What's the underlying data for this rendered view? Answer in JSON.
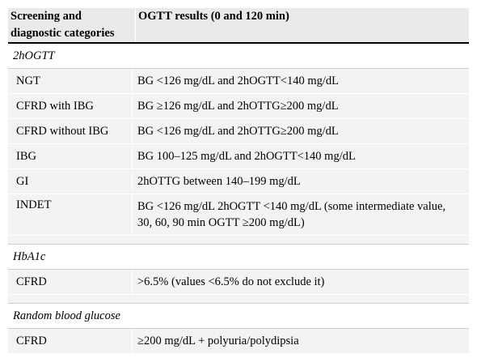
{
  "table": {
    "headers": [
      "Screening and diagnostic categories",
      "OGTT results (0 and 120 min)"
    ],
    "sections": [
      {
        "title": "2hOGTT",
        "rows": [
          {
            "category": "NGT",
            "result": "BG <126 mg/dL and 2hOGTT<140 mg/dL"
          },
          {
            "category": "CFRD with IBG",
            "result": "BG ≥126 mg/dL and 2hOTTG≥200 mg/dL"
          },
          {
            "category": "CFRD without IBG",
            "result": "BG <126 mg/dL and 2hOTTG≥200 mg/dL"
          },
          {
            "category": "IBG",
            "result": "BG 100–125 mg/dL and 2hOGTT<140 mg/dL"
          },
          {
            "category": "GI",
            "result": "2hOTTG between 140–199 mg/dL"
          },
          {
            "category": "INDET",
            "result": "BG <126 mg/dL 2hOGTT <140 mg/dL (some intermediate value, 30, 60, 90 min OGTT ≥200 mg/dL)"
          }
        ]
      },
      {
        "title": "HbA1c",
        "rows": [
          {
            "category": "CFRD",
            "result": ">6.5% (values <6.5% do not exclude it)"
          }
        ]
      },
      {
        "title": "Random blood glucose",
        "rows": [
          {
            "category": "CFRD",
            "result": "≥200 mg/dL + polyuria/polydipsia"
          }
        ]
      }
    ]
  }
}
